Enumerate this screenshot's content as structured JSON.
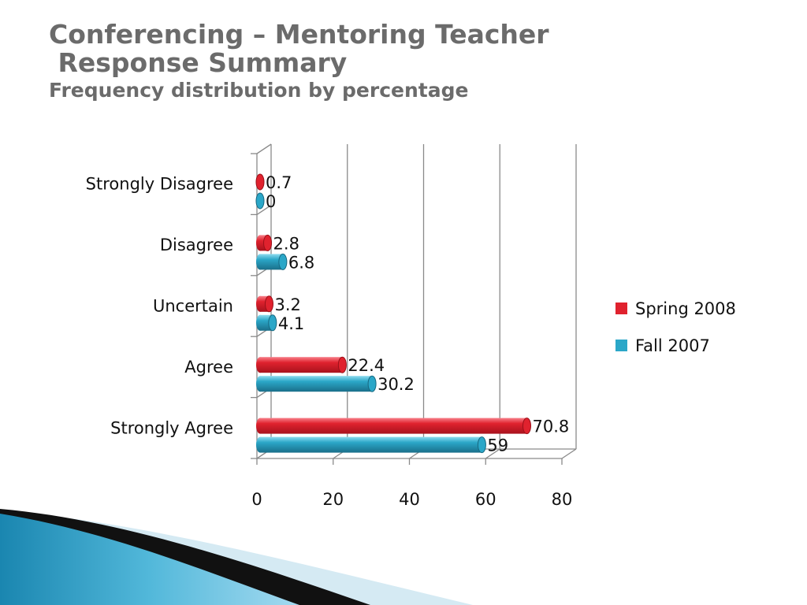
{
  "slide": {
    "title_line1": "Conferencing – Mentoring Teacher",
    "title_line2": " Response Summary",
    "subtitle": "Frequency distribution by percentage"
  },
  "colors": {
    "spring": "#e0222e",
    "fall": "#2ba7c8",
    "axis": "#8a8a8a",
    "title": "#6b6b6b"
  },
  "chart_data": {
    "type": "bar",
    "orientation": "horizontal",
    "style": "3d-cylinder",
    "categories": [
      "Strongly Disagree",
      "Disagree",
      "Uncertain",
      "Agree",
      "Strongly Agree"
    ],
    "series": [
      {
        "name": "Spring 2008",
        "color": "#e0222e",
        "values": [
          0.7,
          2.8,
          3.2,
          22.4,
          70.8
        ],
        "labels": [
          "0.7",
          "2.8",
          "3.2",
          "22.4",
          "70.8"
        ]
      },
      {
        "name": "Fall 2007",
        "color": "#2ba7c8",
        "values": [
          0,
          6.8,
          4.1,
          30.2,
          59
        ],
        "labels": [
          "0",
          "6.8",
          "4.1",
          "30.2",
          "59"
        ]
      }
    ],
    "xlim": [
      0,
      80
    ],
    "xticks": [
      "0",
      "20",
      "40",
      "60",
      "80"
    ],
    "grid": true,
    "legend": "right"
  }
}
